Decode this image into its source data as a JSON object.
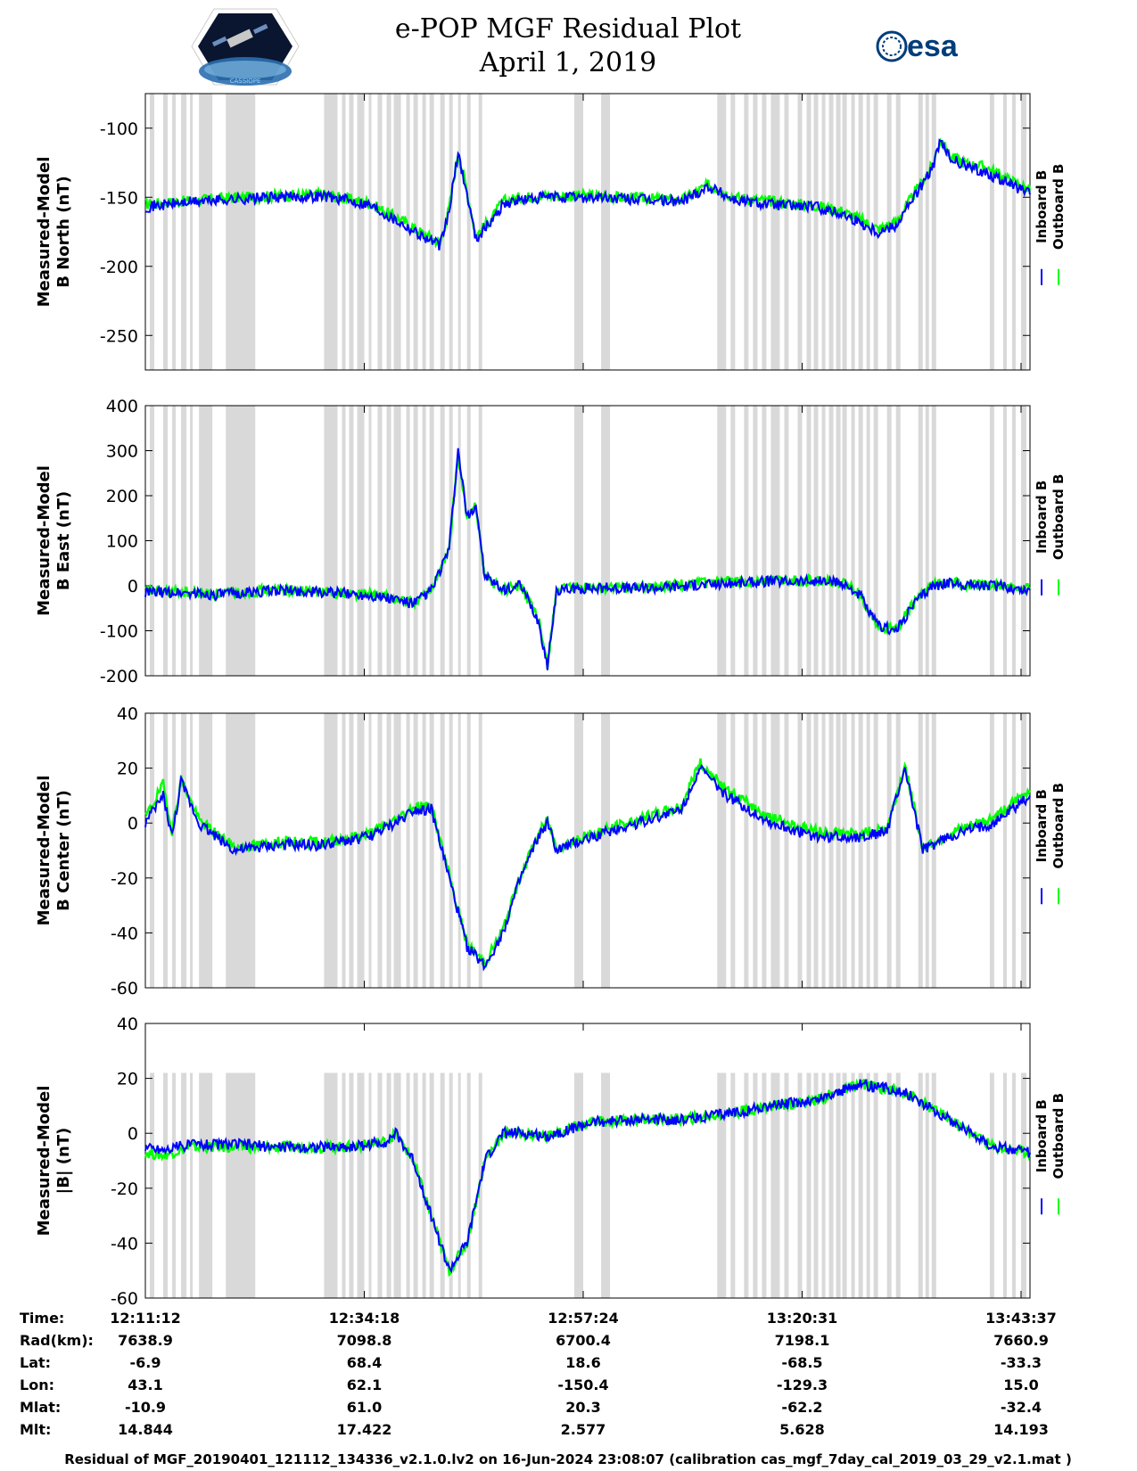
{
  "header": {
    "title": "e-POP MGF Residual Plot",
    "date": "April 1, 2019",
    "left_logo_icon": "cassiope-satellite-logo",
    "right_logo_icon": "esa-logo",
    "right_logo_text": "esa",
    "left_logo_text": "CASSIOPE"
  },
  "colors": {
    "inboard": "#0000ff",
    "outboard": "#00ff00",
    "gap": "#d9d9d9"
  },
  "chart_data": [
    {
      "type": "line",
      "ylabel_line1": "Measured-Model",
      "ylabel_line2": "B North (nT)",
      "ylim": [
        -275,
        -75
      ],
      "yticks": [
        -100,
        -150,
        -200,
        -250
      ],
      "series": [
        {
          "name": "Inboard B",
          "color": "#0000ff"
        },
        {
          "name": "Outboard B",
          "color": "#00ff00"
        }
      ],
      "x_minutes": [
        0,
        4,
        8,
        15,
        20,
        25,
        29,
        31,
        33,
        34,
        35,
        36,
        37,
        39,
        40,
        42,
        45,
        50,
        56,
        60,
        63,
        66,
        70,
        75,
        78,
        80,
        82,
        84,
        86,
        88,
        89,
        90,
        92,
        94,
        96,
        99
      ],
      "inboard": [
        -157,
        -154,
        -152,
        -150,
        -149,
        -155,
        -170,
        -178,
        -185,
        -160,
        -118,
        -148,
        -180,
        -165,
        -155,
        -152,
        -150,
        -150,
        -152,
        -153,
        -142,
        -152,
        -155,
        -157,
        -162,
        -168,
        -175,
        -170,
        -150,
        -130,
        -110,
        -122,
        -128,
        -132,
        -138,
        -148
      ],
      "outboard": [
        -155,
        -153,
        -151,
        -149,
        -148,
        -154,
        -168,
        -176,
        -183,
        -158,
        -117,
        -146,
        -178,
        -163,
        -153,
        -150,
        -149,
        -149,
        -151,
        -152,
        -141,
        -150,
        -153,
        -156,
        -160,
        -166,
        -173,
        -168,
        -148,
        -128,
        -108,
        -120,
        -126,
        -128,
        -135,
        -145
      ]
    },
    {
      "type": "line",
      "ylabel_line1": "Measured-Model",
      "ylabel_line2": "B East (nT)",
      "ylim": [
        -200,
        400
      ],
      "yticks": [
        400,
        300,
        200,
        100,
        0,
        -100,
        -200
      ],
      "series": [
        {
          "name": "Inboard B",
          "color": "#0000ff"
        },
        {
          "name": "Outboard B",
          "color": "#00ff00"
        }
      ],
      "x_minutes": [
        0,
        4,
        8,
        15,
        20,
        25,
        28,
        30,
        32,
        34,
        35,
        36,
        37,
        38,
        40,
        42,
        44,
        45,
        46,
        50,
        56,
        60,
        65,
        70,
        75,
        78,
        80,
        81,
        82,
        84,
        86,
        88,
        90,
        95,
        99
      ],
      "inboard": [
        -15,
        -15,
        -20,
        -10,
        -15,
        -20,
        -30,
        -40,
        -10,
        80,
        300,
        150,
        180,
        20,
        -10,
        0,
        -80,
        -180,
        -10,
        -5,
        -5,
        0,
        5,
        10,
        10,
        5,
        -20,
        -60,
        -90,
        -100,
        -40,
        0,
        5,
        0,
        -10
      ],
      "outboard": [
        -12,
        -14,
        -18,
        -9,
        -14,
        -19,
        -29,
        -39,
        -9,
        78,
        290,
        148,
        178,
        19,
        -9,
        1,
        -78,
        -175,
        -9,
        -4,
        -4,
        2,
        8,
        12,
        12,
        6,
        -18,
        -58,
        -88,
        -98,
        -38,
        1,
        6,
        1,
        -8
      ]
    },
    {
      "type": "line",
      "ylabel_line1": "Measured-Model",
      "ylabel_line2": "B Center (nT)",
      "ylim": [
        -60,
        40
      ],
      "yticks": [
        40,
        20,
        0,
        -20,
        -40,
        -60
      ],
      "series": [
        {
          "name": "Inboard B",
          "color": "#0000ff"
        },
        {
          "name": "Outboard B",
          "color": "#00ff00"
        }
      ],
      "x_minutes": [
        0,
        2,
        3,
        4,
        6,
        8,
        10,
        15,
        20,
        25,
        28,
        30,
        32,
        34,
        36,
        38,
        40,
        42,
        44,
        45,
        46,
        50,
        55,
        58,
        60,
        62,
        65,
        70,
        75,
        80,
        83,
        85,
        87,
        90,
        95,
        99
      ],
      "inboard": [
        0,
        10,
        -5,
        15,
        0,
        -5,
        -10,
        -8,
        -8,
        -5,
        0,
        5,
        5,
        -20,
        -45,
        -52,
        -40,
        -20,
        -5,
        0,
        -10,
        -5,
        0,
        3,
        5,
        20,
        10,
        0,
        -5,
        -5,
        -3,
        20,
        -10,
        -5,
        0,
        10
      ],
      "outboard": [
        2,
        14,
        -3,
        16,
        1,
        -4,
        -9,
        -7,
        -7,
        -4,
        1,
        6,
        6,
        -19,
        -44,
        -51,
        -39,
        -19,
        -4,
        1,
        -9,
        -4,
        1,
        4,
        6,
        22,
        12,
        2,
        -3,
        -4,
        -2,
        21,
        -9,
        -4,
        2,
        12
      ]
    },
    {
      "type": "line",
      "ylabel_line1": "Measured-Model",
      "ylabel_line2": "|B| (nT)",
      "ylim": [
        -60,
        40
      ],
      "yticks": [
        40,
        20,
        0,
        -20,
        -40,
        -60
      ],
      "series": [
        {
          "name": "Inboard B",
          "color": "#0000ff"
        },
        {
          "name": "Outboard B",
          "color": "#00ff00"
        }
      ],
      "x_minutes": [
        0,
        2,
        5,
        10,
        15,
        20,
        23,
        25,
        27,
        28,
        30,
        32,
        34,
        36,
        38,
        40,
        42,
        45,
        48,
        50,
        55,
        60,
        65,
        70,
        75,
        80,
        85,
        90,
        95,
        99
      ],
      "inboard": [
        -5,
        -6,
        -4,
        -4,
        -5,
        -5,
        -5,
        -4,
        -3,
        0,
        -10,
        -30,
        -50,
        -40,
        -10,
        0,
        0,
        -1,
        2,
        4,
        5,
        5,
        7,
        10,
        12,
        18,
        15,
        5,
        -5,
        -7
      ],
      "outboard": [
        -7,
        -8,
        -5,
        -5,
        -5,
        -5,
        -5,
        -4,
        -3,
        0,
        -10,
        -30,
        -50,
        -40,
        -10,
        0,
        0,
        -1,
        2,
        4,
        5,
        5,
        7,
        10,
        12,
        18,
        15,
        5,
        -5,
        -7
      ]
    }
  ],
  "legend": {
    "inboard": "Inboard B",
    "outboard": "Outboard B"
  },
  "info_table": {
    "row_labels": [
      "Time:",
      "Rad(km):",
      "Lat:",
      "Lon:",
      "Mlat:",
      "Mlt:"
    ],
    "columns": [
      [
        "12:11:12",
        "7638.9",
        "-6.9",
        "43.1",
        "-10.9",
        "14.844"
      ],
      [
        "12:34:18",
        "7098.8",
        "68.4",
        "62.1",
        "61.0",
        "17.422"
      ],
      [
        "12:57:24",
        "6700.4",
        "18.6",
        "-150.4",
        "20.3",
        "2.577"
      ],
      [
        "13:20:31",
        "7198.1",
        "-68.5",
        "-129.3",
        "-62.2",
        "5.628"
      ],
      [
        "13:43:37",
        "7660.9",
        "-33.3",
        "15.0",
        "-32.4",
        "14.193"
      ]
    ]
  },
  "footer": "Residual of MGF_20190401_121112_134336_v2.1.0.lv2 on 16-Jun-2024 23:08:07 (calibration cas_mgf_7day_cal_2019_03_29_v2.1.mat )"
}
